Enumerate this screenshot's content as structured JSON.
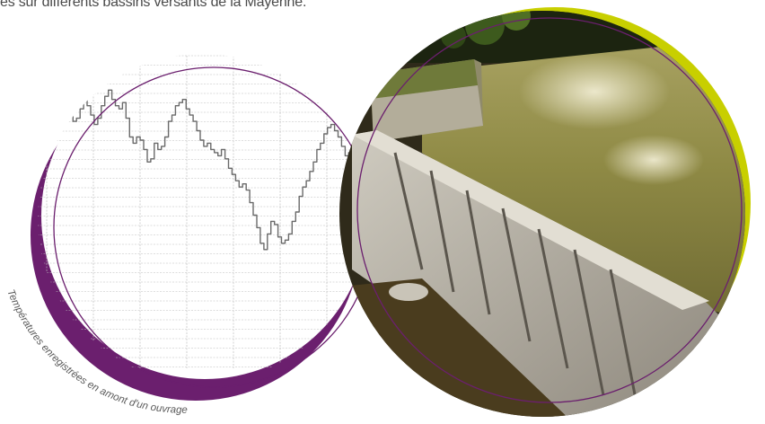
{
  "intro_text": "es sur différents bassins versants de la Mayenne.",
  "caption": "Températures enregistrées en amont d'un ouvrage",
  "colors": {
    "purple": "#6b1f6e",
    "lime": "#c8cf00",
    "grid": "#bdbdbd",
    "trace": "#6a6a6a"
  },
  "chart_data": {
    "type": "line",
    "title": "",
    "xlabel": "",
    "ylabel": "",
    "grid": true,
    "ylim": [
      0,
      100
    ],
    "x": [
      0,
      1,
      2,
      3,
      4,
      5,
      6,
      7,
      8,
      9,
      10,
      11,
      12,
      13,
      14,
      15,
      16,
      17,
      18,
      19,
      20,
      21,
      22,
      23,
      24,
      25,
      26,
      27,
      28,
      29,
      30,
      31,
      32,
      33,
      34,
      35,
      36,
      37,
      38,
      39,
      40,
      41,
      42,
      43,
      44,
      45,
      46,
      47,
      48,
      49,
      50,
      51,
      52,
      53,
      54,
      55,
      56,
      57,
      58,
      59,
      60,
      61,
      62,
      63,
      64,
      65,
      66,
      67,
      68,
      69,
      70,
      71,
      72,
      73,
      74,
      75,
      76,
      77,
      78,
      79,
      80,
      81,
      82,
      83,
      84,
      85,
      86,
      87,
      88,
      89,
      90,
      91,
      92,
      93,
      94
    ],
    "series": [
      {
        "values": [
          55,
          60,
          70,
          78,
          84,
          91,
          89,
          90,
          86,
          83,
          81,
          79,
          80,
          83,
          86,
          84,
          81,
          78,
          80,
          84,
          87,
          89,
          86,
          84,
          83,
          85,
          80,
          74,
          72,
          74,
          73,
          70,
          66,
          67,
          72,
          70,
          71,
          74,
          79,
          81,
          84,
          85,
          86,
          83,
          81,
          79,
          76,
          73,
          71,
          72,
          70,
          69,
          68,
          70,
          67,
          64,
          62,
          60,
          58,
          59,
          57,
          53,
          49,
          45,
          40,
          38,
          43,
          47,
          46,
          42,
          40,
          41,
          43,
          47,
          50,
          55,
          58,
          60,
          63,
          66,
          70,
          72,
          75,
          77,
          78,
          76,
          74,
          71,
          68,
          69,
          72,
          75,
          76,
          73,
          70
        ]
      }
    ]
  }
}
